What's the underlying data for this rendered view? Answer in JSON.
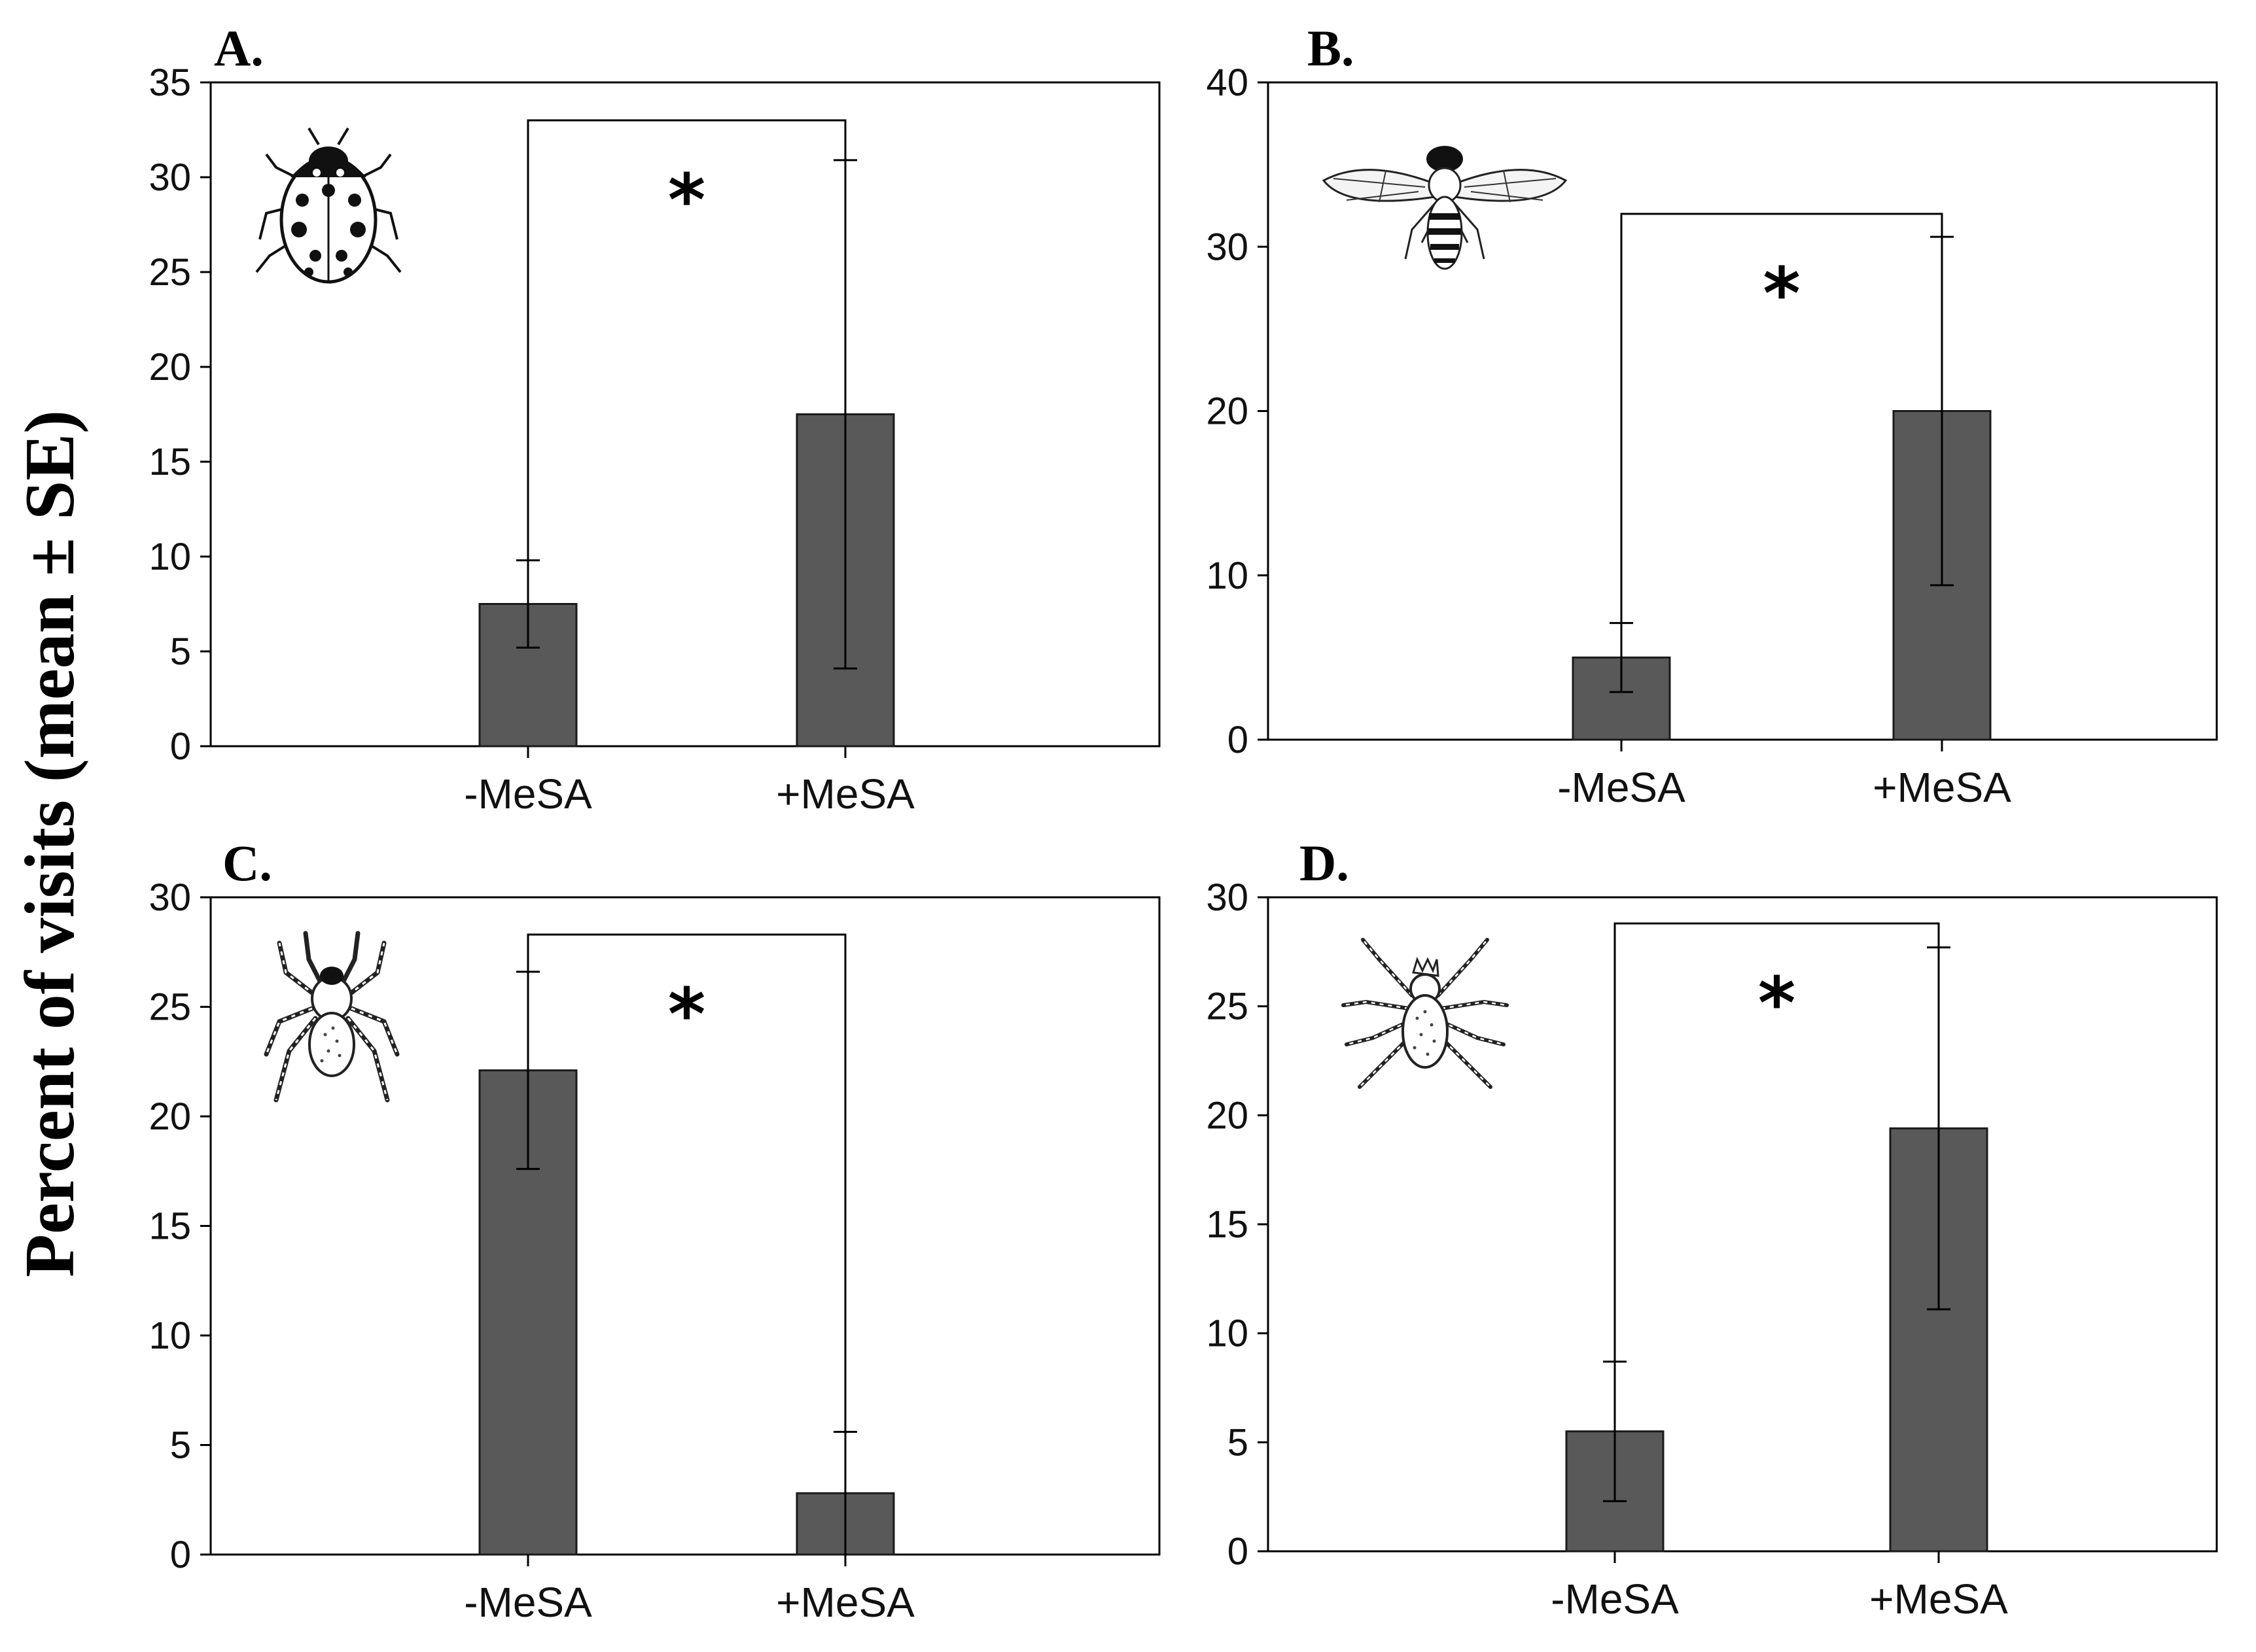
{
  "figure": {
    "ylabel": "Percent of visits (mean ± SE)"
  },
  "colors": {
    "bar": "#595959",
    "bar_edge": "#1a1a1a",
    "axis": "#000000",
    "text": "#111111"
  },
  "chart_data": [
    {
      "type": "bar",
      "panel": "A.",
      "icon": "ladybug-icon",
      "categories": [
        "-MeSA",
        "+MeSA"
      ],
      "values": [
        7.5,
        17.5
      ],
      "errors": [
        2.3,
        13.4
      ],
      "ylim": [
        0,
        35
      ],
      "yticks": [
        0,
        5,
        10,
        15,
        20,
        25,
        30,
        35
      ],
      "significance": {
        "label": "*",
        "bracket_y": 33
      }
    },
    {
      "type": "bar",
      "panel": "B.",
      "icon": "hoverfly-icon",
      "categories": [
        "-MeSA",
        "+MeSA"
      ],
      "values": [
        5,
        20
      ],
      "errors": [
        2.1,
        10.6
      ],
      "ylim": [
        0,
        40
      ],
      "yticks": [
        0,
        10,
        20,
        30,
        40
      ],
      "significance": {
        "label": "*",
        "bracket_y": 32
      }
    },
    {
      "type": "bar",
      "panel": "C.",
      "icon": "spider-icon",
      "categories": [
        "-MeSA",
        "+MeSA"
      ],
      "values": [
        22.1,
        2.8
      ],
      "errors": [
        4.5,
        2.8
      ],
      "ylim": [
        0,
        30
      ],
      "yticks": [
        0,
        5,
        10,
        15,
        20,
        25,
        30
      ],
      "significance": {
        "label": "*",
        "bracket_y": 28.3
      }
    },
    {
      "type": "bar",
      "panel": "D.",
      "icon": "mite-spider-icon",
      "categories": [
        "-MeSA",
        "+MeSA"
      ],
      "values": [
        5.5,
        19.4
      ],
      "errors": [
        3.2,
        8.3
      ],
      "ylim": [
        0,
        30
      ],
      "yticks": [
        0,
        5,
        10,
        15,
        20,
        25,
        30
      ],
      "significance": {
        "label": "*",
        "bracket_y": 28.8
      }
    }
  ]
}
